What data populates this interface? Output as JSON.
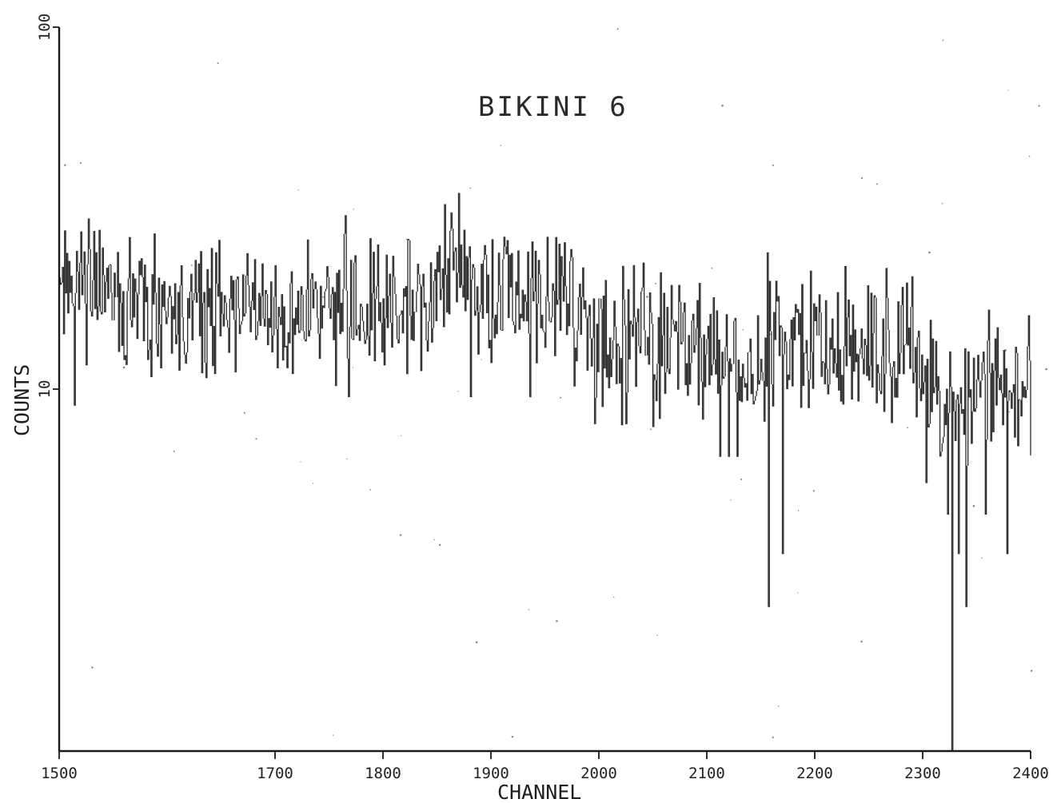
{
  "chart_data": {
    "type": "line",
    "style": "histogram-spectrum",
    "title": "BIKINI 6",
    "xlabel": "CHANNEL",
    "ylabel": "COUNTS",
    "xlim": [
      1500,
      2400
    ],
    "ylim": [
      1,
      100
    ],
    "y_scale": "log",
    "grid": false,
    "legend": "none",
    "x_ticks": [
      1500,
      1700,
      1800,
      1900,
      2000,
      2100,
      2200,
      2300,
      2400
    ],
    "x_tick_labels": [
      "1500",
      "1700",
      "1800",
      "1900",
      "2000",
      "2100",
      "2200",
      "2300",
      "2400"
    ],
    "y_ticks": [
      10,
      100
    ],
    "y_tick_labels": [
      "10",
      "100"
    ],
    "series": [
      {
        "x_start": 1500,
        "x_step": 1,
        "envelope": {
          "x": [
            1500,
            1520,
            1540,
            1560,
            1600,
            1650,
            1700,
            1750,
            1800,
            1850,
            1865,
            1900,
            1950,
            1985,
            1990,
            2000,
            2050,
            2100,
            2150,
            2200,
            2250,
            2290,
            2300,
            2320,
            2340,
            2360,
            2380,
            2390,
            2400
          ],
          "mean": [
            17,
            21,
            18,
            16,
            16,
            17,
            17,
            17,
            17,
            18,
            22,
            19,
            17,
            16,
            14,
            13,
            13,
            13,
            13,
            13,
            12.5,
            12.5,
            10,
            9.5,
            9.5,
            10,
            10,
            11,
            11
          ]
        },
        "dips": [
          {
            "x": 1514,
            "y": 9
          },
          {
            "x": 1768,
            "y": 9.5
          },
          {
            "x": 1881,
            "y": 9.5
          },
          {
            "x": 1936,
            "y": 9.5
          },
          {
            "x": 1996,
            "y": 8
          },
          {
            "x": 2025,
            "y": 8
          },
          {
            "x": 2112,
            "y": 6.5
          },
          {
            "x": 2120,
            "y": 6.5
          },
          {
            "x": 2128,
            "y": 6.5
          },
          {
            "x": 2157,
            "y": 2.5
          },
          {
            "x": 2170,
            "y": 3.5
          },
          {
            "x": 2303,
            "y": 5.5
          },
          {
            "x": 2323,
            "y": 4.5
          },
          {
            "x": 2327,
            "y": 1
          },
          {
            "x": 2333,
            "y": 3.5
          },
          {
            "x": 2340,
            "y": 2.5
          },
          {
            "x": 2358,
            "y": 4.5
          },
          {
            "x": 2378,
            "y": 3.5
          }
        ],
        "spikes": [
          {
            "x": 1523,
            "y": 24
          },
          {
            "x": 1546,
            "y": 22
          },
          {
            "x": 1576,
            "y": 23
          },
          {
            "x": 1661,
            "y": 20
          },
          {
            "x": 1700,
            "y": 22
          },
          {
            "x": 1823,
            "y": 26
          },
          {
            "x": 1860,
            "y": 23
          },
          {
            "x": 1866,
            "y": 24
          },
          {
            "x": 1895,
            "y": 23.5
          },
          {
            "x": 1917,
            "y": 23.5
          },
          {
            "x": 2109,
            "y": 16.5
          },
          {
            "x": 2147,
            "y": 16
          },
          {
            "x": 2296,
            "y": 14.5
          },
          {
            "x": 2398,
            "y": 16
          }
        ]
      }
    ]
  }
}
